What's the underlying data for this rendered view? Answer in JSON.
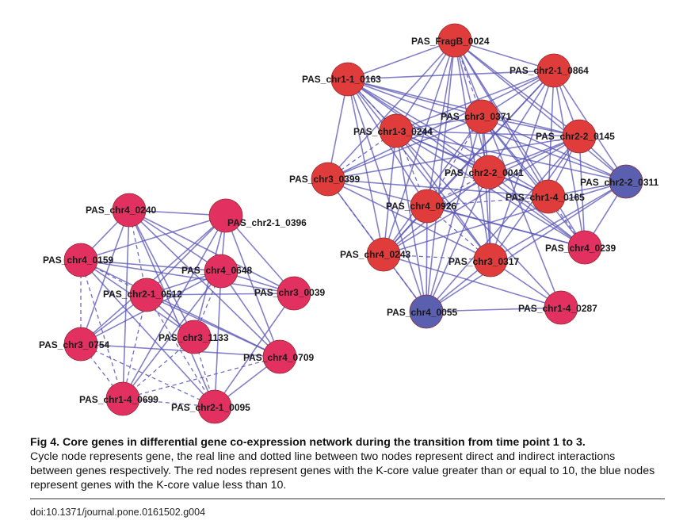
{
  "figure": {
    "caption_title": "Fig 4. Core genes in differential gene co-expression network during the transition from time point 1 to 3.",
    "caption_body": "Cycle node represents gene, the real line and dotted line between two nodes represent direct and indirect interactions between genes respectively. The red nodes represent genes with the K-core value greater than or equal to 10, the blue nodes represent genes with the K-core value less than 10.",
    "doi": "doi:10.1371/journal.pone.0161502.g004"
  },
  "colors": {
    "red_node": "#e03c3c",
    "pink_node": "#e23060",
    "blue_node": "#5a5fb0",
    "edge": "#5a55b5"
  },
  "networks": [
    {
      "name": "left",
      "nodes": [
        {
          "id": "L0",
          "label": "PAS_chr4_0240",
          "color": "pink"
        },
        {
          "id": "L1",
          "label": "PAS_chr2-1_0396",
          "color": "pink"
        },
        {
          "id": "L2",
          "label": "PAS_chr4_0159",
          "color": "pink"
        },
        {
          "id": "L3",
          "label": "PAS_chr4_0648",
          "color": "pink"
        },
        {
          "id": "L4",
          "label": "PAS_chr2-1_0512",
          "color": "pink"
        },
        {
          "id": "L5",
          "label": "PAS_chr3_0039",
          "color": "pink"
        },
        {
          "id": "L6",
          "label": "PAS_chr3_1133",
          "color": "pink"
        },
        {
          "id": "L7",
          "label": "PAS_chr3_0754",
          "color": "pink"
        },
        {
          "id": "L8",
          "label": "PAS_chr4_0709",
          "color": "pink"
        },
        {
          "id": "L9",
          "label": "PAS_chr1-4_0699",
          "color": "pink"
        },
        {
          "id": "L10",
          "label": "PAS_chr2-1_0095",
          "color": "pink"
        }
      ]
    },
    {
      "name": "right",
      "nodes": [
        {
          "id": "R0",
          "label": "PAS_FragB_0024",
          "color": "red"
        },
        {
          "id": "R1",
          "label": "PAS_chr1-1_0163",
          "color": "red"
        },
        {
          "id": "R2",
          "label": "PAS_chr2-1_0864",
          "color": "red"
        },
        {
          "id": "R3",
          "label": "PAS_chr3_0371",
          "color": "red"
        },
        {
          "id": "R4",
          "label": "PAS_chr1-3_0244",
          "color": "red"
        },
        {
          "id": "R5",
          "label": "PAS_chr2-2_0145",
          "color": "red"
        },
        {
          "id": "R6",
          "label": "PAS_chr3_0399",
          "color": "red"
        },
        {
          "id": "R7",
          "label": "PAS_chr2-2_0041",
          "color": "red"
        },
        {
          "id": "R8",
          "label": "PAS_chr2-2_0311",
          "color": "blue"
        },
        {
          "id": "R9",
          "label": "PAS_chr4_0926",
          "color": "red"
        },
        {
          "id": "R10",
          "label": "PAS_chr1-4_0165",
          "color": "red"
        },
        {
          "id": "R11",
          "label": "PAS_chr4_0239",
          "color": "pink"
        },
        {
          "id": "R12",
          "label": "PAS_chr4_0243",
          "color": "red"
        },
        {
          "id": "R13",
          "label": "PAS_chr3_0317",
          "color": "red"
        },
        {
          "id": "R14",
          "label": "PAS_chr4_0055",
          "color": "blue"
        },
        {
          "id": "R15",
          "label": "PAS_chr1-4_0287",
          "color": "pink"
        }
      ]
    }
  ],
  "dashed_edges": [
    [
      "L2",
      "L4"
    ],
    [
      "L2",
      "L7"
    ],
    [
      "L7",
      "L9"
    ],
    [
      "L7",
      "L10"
    ],
    [
      "L4",
      "L9"
    ],
    [
      "L4",
      "L10"
    ],
    [
      "L6",
      "L9"
    ],
    [
      "L6",
      "L10"
    ],
    [
      "L9",
      "L10"
    ],
    [
      "L0",
      "L4"
    ],
    [
      "L3",
      "L6"
    ],
    [
      "L9",
      "L8"
    ],
    [
      "L2",
      "L9"
    ],
    [
      "R0",
      "R3"
    ],
    [
      "R1",
      "R4"
    ],
    [
      "R4",
      "R6"
    ],
    [
      "R4",
      "R9"
    ],
    [
      "R7",
      "R9"
    ],
    [
      "R9",
      "R10"
    ],
    [
      "R3",
      "R9"
    ],
    [
      "R6",
      "R12"
    ],
    [
      "R12",
      "R13"
    ],
    [
      "R10",
      "R11"
    ],
    [
      "R9",
      "R13"
    ],
    [
      "R12",
      "R14"
    ]
  ]
}
